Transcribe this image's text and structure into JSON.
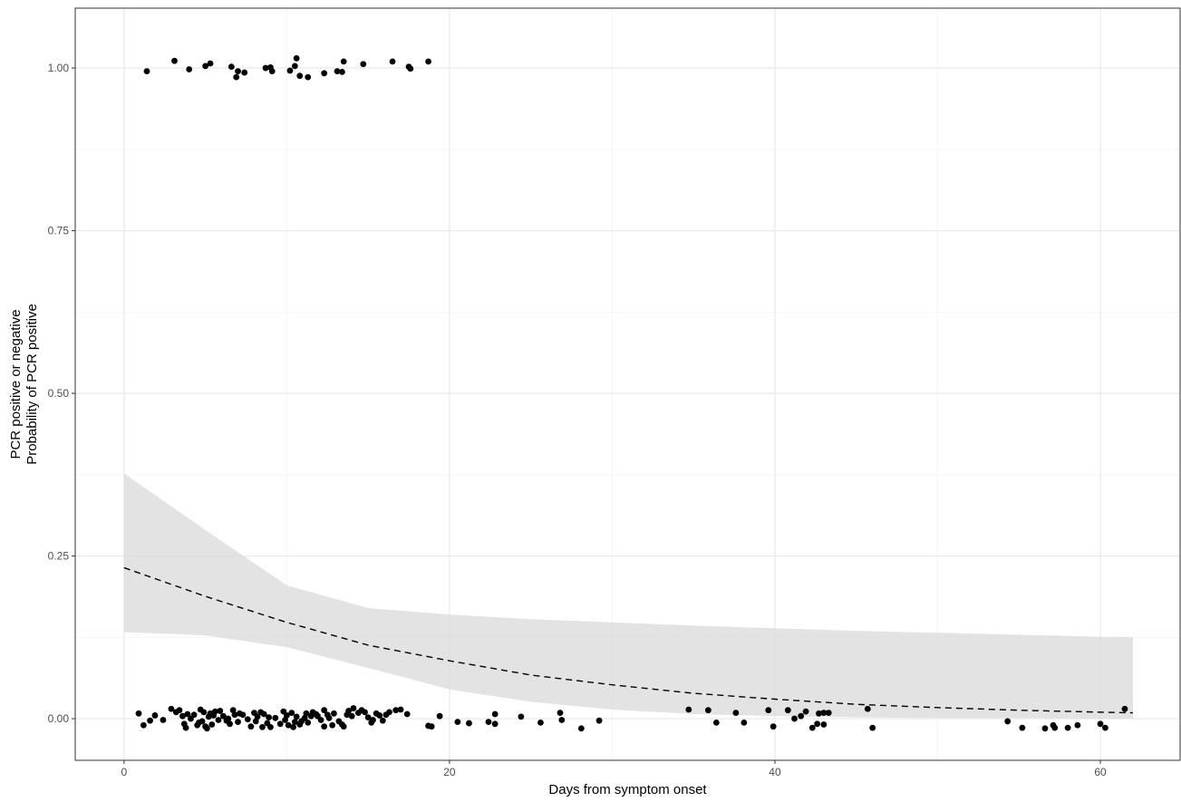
{
  "chart_data": {
    "type": "scatter",
    "title": "",
    "xlabel": "Days from symptom onset",
    "ylabel_lines": [
      "PCR positive or negative",
      "Probability of PCR positive"
    ],
    "xlim": [
      -3.0,
      64.9
    ],
    "ylim": [
      -0.064,
      1.092
    ],
    "x_ticks": [
      0,
      20,
      40,
      60
    ],
    "x_tick_labels": [
      "0",
      "20",
      "40",
      "60"
    ],
    "y_ticks": [
      0,
      0.25,
      0.5,
      0.75,
      1.0
    ],
    "y_tick_labels": [
      "0.00",
      "0.25",
      "0.50",
      "0.75",
      "1.00"
    ],
    "grid": true,
    "colors": {
      "points": "#000000",
      "ribbon": "#d9d9d9",
      "fit_line": "#000000",
      "grid_major": "#ebebeb",
      "grid_minor": "#f3f3f3",
      "panel_border": "#333333"
    },
    "fit": {
      "style": "dashed",
      "x": [
        0,
        5,
        10,
        15,
        20,
        25,
        30,
        35,
        40,
        45,
        50,
        55,
        60,
        62
      ],
      "y": [
        0.232,
        0.188,
        0.148,
        0.113,
        0.089,
        0.067,
        0.052,
        0.039,
        0.03,
        0.022,
        0.017,
        0.013,
        0.01,
        0.009
      ],
      "lower": [
        0.133,
        0.128,
        0.11,
        0.078,
        0.045,
        0.026,
        0.014,
        0.007,
        0.004,
        0.002,
        0.001,
        0.001,
        0.0,
        0.0
      ],
      "upper": [
        0.377,
        0.29,
        0.205,
        0.17,
        0.16,
        0.153,
        0.148,
        0.143,
        0.139,
        0.135,
        0.132,
        0.129,
        0.126,
        0.125
      ]
    },
    "series": [
      {
        "outcome": 1,
        "points": [
          [
            1.4,
            0.995
          ],
          [
            3.1,
            1.011
          ],
          [
            4.0,
            0.998
          ],
          [
            5.0,
            1.003
          ],
          [
            5.3,
            1.007
          ],
          [
            6.6,
            1.002
          ],
          [
            6.9,
            0.986
          ],
          [
            7.0,
            0.995
          ],
          [
            7.4,
            0.993
          ],
          [
            8.7,
            1.0
          ],
          [
            9.0,
            1.001
          ],
          [
            9.1,
            0.995
          ],
          [
            10.2,
            0.996
          ],
          [
            10.5,
            1.003
          ],
          [
            10.6,
            1.015
          ],
          [
            10.8,
            0.988
          ],
          [
            11.3,
            0.986
          ],
          [
            12.3,
            0.992
          ],
          [
            13.1,
            0.995
          ],
          [
            13.4,
            0.994
          ],
          [
            13.5,
            1.01
          ],
          [
            14.7,
            1.006
          ],
          [
            16.5,
            1.01
          ],
          [
            17.5,
            1.002
          ],
          [
            17.6,
            0.999
          ],
          [
            18.7,
            1.01
          ]
        ]
      },
      {
        "outcome": 0,
        "points": [
          [
            0.9,
            0.008
          ],
          [
            1.2,
            -0.01
          ],
          [
            1.6,
            -0.003
          ],
          [
            1.9,
            0.005
          ],
          [
            2.4,
            -0.002
          ],
          [
            2.9,
            0.015
          ],
          [
            3.2,
            0.01
          ],
          [
            3.4,
            0.013
          ],
          [
            3.6,
            0.004
          ],
          [
            3.7,
            -0.008
          ],
          [
            3.8,
            -0.014
          ],
          [
            3.9,
            0.007
          ],
          [
            4.1,
            0.0
          ],
          [
            4.3,
            0.006
          ],
          [
            4.5,
            -0.01
          ],
          [
            4.6,
            -0.006
          ],
          [
            4.7,
            0.014
          ],
          [
            4.8,
            -0.004
          ],
          [
            4.9,
            0.01
          ],
          [
            5.0,
            -0.012
          ],
          [
            5.1,
            -0.015
          ],
          [
            5.2,
            0.003
          ],
          [
            5.3,
            0.008
          ],
          [
            5.4,
            -0.009
          ],
          [
            5.5,
            0.005
          ],
          [
            5.6,
            0.011
          ],
          [
            5.8,
            -0.002
          ],
          [
            5.9,
            0.012
          ],
          [
            6.1,
            0.004
          ],
          [
            6.3,
            -0.003
          ],
          [
            6.4,
            0.0
          ],
          [
            6.5,
            -0.008
          ],
          [
            6.7,
            0.013
          ],
          [
            6.8,
            0.006
          ],
          [
            7.0,
            -0.005
          ],
          [
            7.1,
            0.008
          ],
          [
            7.3,
            0.006
          ],
          [
            7.6,
            -0.001
          ],
          [
            7.8,
            -0.012
          ],
          [
            8.0,
            0.009
          ],
          [
            8.1,
            -0.004
          ],
          [
            8.2,
            0.003
          ],
          [
            8.4,
            0.01
          ],
          [
            8.5,
            -0.013
          ],
          [
            8.6,
            0.007
          ],
          [
            8.8,
            -0.007
          ],
          [
            8.9,
            0.002
          ],
          [
            9.0,
            -0.013
          ],
          [
            9.3,
            0.001
          ],
          [
            9.6,
            -0.008
          ],
          [
            9.8,
            0.011
          ],
          [
            9.9,
            -0.002
          ],
          [
            10.0,
            0.005
          ],
          [
            10.1,
            -0.01
          ],
          [
            10.3,
            0.009
          ],
          [
            10.4,
            -0.013
          ],
          [
            10.5,
            -0.005
          ],
          [
            10.6,
            0.003
          ],
          [
            10.8,
            -0.009
          ],
          [
            10.9,
            -0.004
          ],
          [
            11.1,
            0.001
          ],
          [
            11.2,
            0.008
          ],
          [
            11.3,
            -0.006
          ],
          [
            11.5,
            0.004
          ],
          [
            11.6,
            0.01
          ],
          [
            11.8,
            0.007
          ],
          [
            11.9,
            0.004
          ],
          [
            12.1,
            -0.002
          ],
          [
            12.3,
            0.013
          ],
          [
            12.3,
            -0.012
          ],
          [
            12.5,
            0.006
          ],
          [
            12.6,
            0.001
          ],
          [
            12.8,
            -0.01
          ],
          [
            12.9,
            0.008
          ],
          [
            13.2,
            -0.004
          ],
          [
            13.4,
            -0.009
          ],
          [
            13.5,
            -0.012
          ],
          [
            13.7,
            0.006
          ],
          [
            13.8,
            0.012
          ],
          [
            14.0,
            0.004
          ],
          [
            14.1,
            0.016
          ],
          [
            14.4,
            0.009
          ],
          [
            14.6,
            0.013
          ],
          [
            14.8,
            0.01
          ],
          [
            15.0,
            0.002
          ],
          [
            15.2,
            -0.006
          ],
          [
            15.3,
            -0.002
          ],
          [
            15.5,
            0.008
          ],
          [
            15.7,
            0.005
          ],
          [
            15.9,
            -0.003
          ],
          [
            16.1,
            0.006
          ],
          [
            16.3,
            0.01
          ],
          [
            16.7,
            0.013
          ],
          [
            17.0,
            0.014
          ],
          [
            17.4,
            0.007
          ],
          [
            18.7,
            -0.011
          ],
          [
            18.9,
            -0.012
          ],
          [
            19.4,
            0.004
          ],
          [
            20.5,
            -0.005
          ],
          [
            21.2,
            -0.007
          ],
          [
            22.4,
            -0.005
          ],
          [
            22.8,
            0.007
          ],
          [
            22.8,
            -0.008
          ],
          [
            24.4,
            0.003
          ],
          [
            25.6,
            -0.006
          ],
          [
            26.8,
            0.009
          ],
          [
            26.9,
            -0.002
          ],
          [
            28.1,
            -0.015
          ],
          [
            29.2,
            -0.003
          ],
          [
            34.7,
            0.014
          ],
          [
            35.9,
            0.013
          ],
          [
            36.4,
            -0.006
          ],
          [
            37.6,
            0.009
          ],
          [
            38.1,
            -0.006
          ],
          [
            39.6,
            0.013
          ],
          [
            39.9,
            -0.012
          ],
          [
            40.8,
            0.013
          ],
          [
            41.2,
            0.0
          ],
          [
            41.6,
            0.004
          ],
          [
            41.9,
            0.011
          ],
          [
            42.3,
            -0.014
          ],
          [
            42.6,
            -0.008
          ],
          [
            42.7,
            0.008
          ],
          [
            43.0,
            -0.009
          ],
          [
            43.0,
            0.009
          ],
          [
            43.3,
            0.009
          ],
          [
            45.7,
            0.015
          ],
          [
            46.0,
            -0.014
          ],
          [
            54.3,
            -0.004
          ],
          [
            55.2,
            -0.014
          ],
          [
            56.6,
            -0.015
          ],
          [
            57.1,
            -0.01
          ],
          [
            57.2,
            -0.014
          ],
          [
            58.0,
            -0.014
          ],
          [
            58.6,
            -0.01
          ],
          [
            60.0,
            -0.008
          ],
          [
            60.3,
            -0.014
          ],
          [
            61.5,
            0.015
          ]
        ]
      }
    ]
  }
}
